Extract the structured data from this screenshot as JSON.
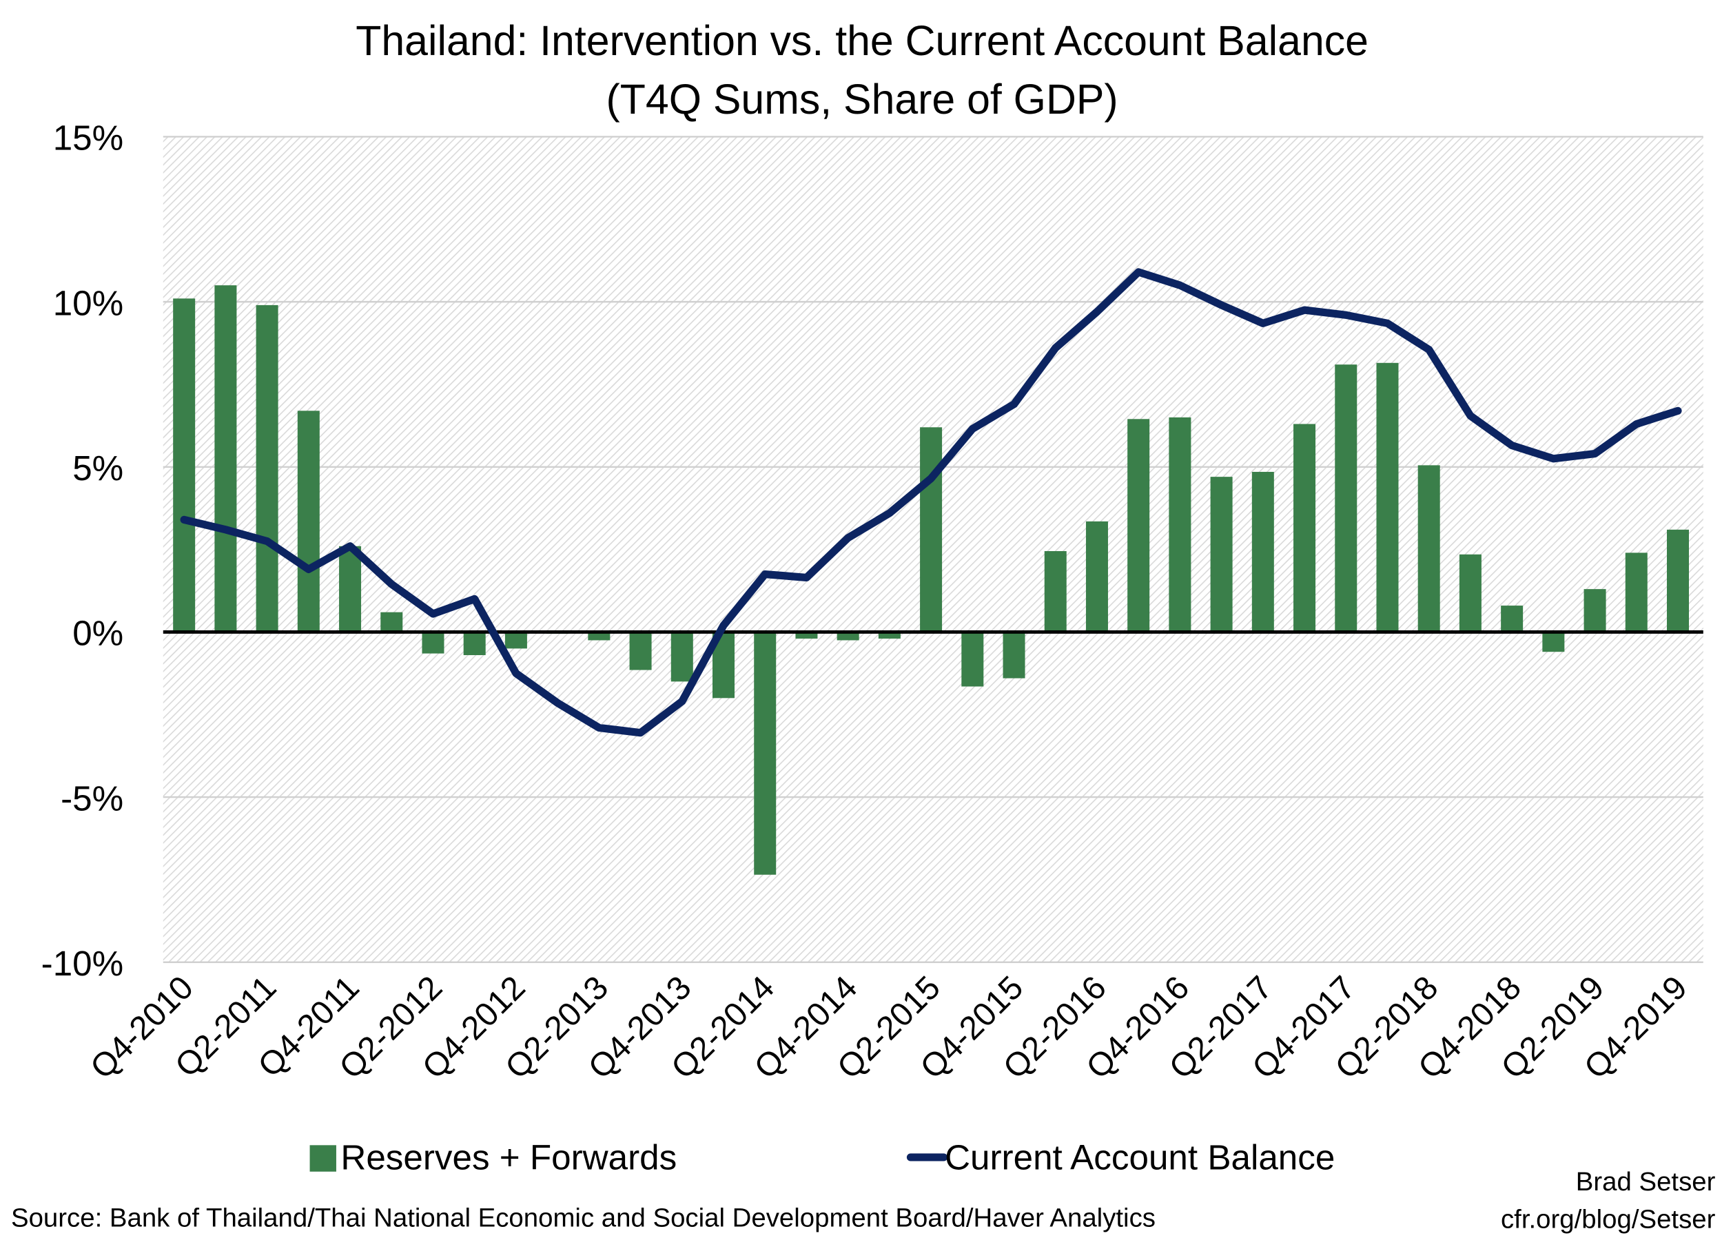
{
  "chart_data": {
    "type": "bar+line",
    "title": "Thailand: Intervention vs. the Current Account Balance",
    "subtitle": "(T4Q Sums, Share of GDP)",
    "xlabel": "",
    "ylabel": "",
    "ylim": [
      -10,
      15
    ],
    "yticks": [
      15,
      10,
      5,
      0,
      -5,
      -10
    ],
    "ytick_labels": [
      "15%",
      "10%",
      "5%",
      "0%",
      "-5%",
      "-10%"
    ],
    "grid": true,
    "categories": [
      "Q4-2010",
      "Q1-2011",
      "Q2-2011",
      "Q3-2011",
      "Q4-2011",
      "Q1-2012",
      "Q2-2012",
      "Q3-2012",
      "Q4-2012",
      "Q1-2013",
      "Q2-2013",
      "Q3-2013",
      "Q4-2013",
      "Q1-2014",
      "Q2-2014",
      "Q3-2014",
      "Q4-2014",
      "Q1-2015",
      "Q2-2015",
      "Q3-2015",
      "Q4-2015",
      "Q1-2016",
      "Q2-2016",
      "Q3-2016",
      "Q4-2016",
      "Q1-2017",
      "Q2-2017",
      "Q3-2017",
      "Q4-2017",
      "Q1-2018",
      "Q2-2018",
      "Q3-2018",
      "Q4-2018",
      "Q1-2019",
      "Q2-2019",
      "Q3-2019",
      "Q4-2019"
    ],
    "xtick_labels": [
      "Q4-2010",
      "Q2-2011",
      "Q4-2011",
      "Q2-2012",
      "Q4-2012",
      "Q2-2013",
      "Q4-2013",
      "Q2-2014",
      "Q4-2014",
      "Q2-2015",
      "Q4-2015",
      "Q2-2016",
      "Q4-2016",
      "Q2-2017",
      "Q4-2017",
      "Q2-2018",
      "Q4-2018",
      "Q2-2019",
      "Q4-2019"
    ],
    "series": [
      {
        "name": "Reserves + Forwards",
        "type": "bar",
        "color": "#3a7f4a",
        "values": [
          10.1,
          10.5,
          9.9,
          6.7,
          2.6,
          0.6,
          -0.65,
          -0.7,
          -0.5,
          -0.05,
          -0.25,
          -1.15,
          -1.5,
          -2.0,
          -7.35,
          -0.2,
          -0.25,
          -0.2,
          6.2,
          -1.65,
          -1.4,
          2.45,
          3.35,
          6.45,
          6.5,
          4.7,
          4.85,
          6.3,
          8.1,
          8.15,
          5.05,
          2.35,
          0.8,
          -0.6,
          1.3,
          2.4,
          3.1
        ]
      },
      {
        "name": "Current Account Balance",
        "type": "line",
        "color": "#0c2461",
        "values": [
          3.4,
          3.1,
          2.75,
          1.9,
          2.6,
          1.45,
          0.55,
          1.0,
          -1.25,
          -2.15,
          -2.9,
          -3.05,
          -2.1,
          0.2,
          1.75,
          1.65,
          2.85,
          3.6,
          4.65,
          6.15,
          6.9,
          8.6,
          9.7,
          10.9,
          10.5,
          9.9,
          9.35,
          9.75,
          9.6,
          9.35,
          8.55,
          6.55,
          5.65,
          5.25,
          5.4,
          6.3,
          6.7
        ]
      }
    ],
    "legend": "bottom",
    "source": "Source: Bank of Thailand/Thai National Economic and Social Development Board/Haver Analytics",
    "credit_name": "Brad Setser",
    "credit_url": "cfr.org/blog/Setser"
  }
}
